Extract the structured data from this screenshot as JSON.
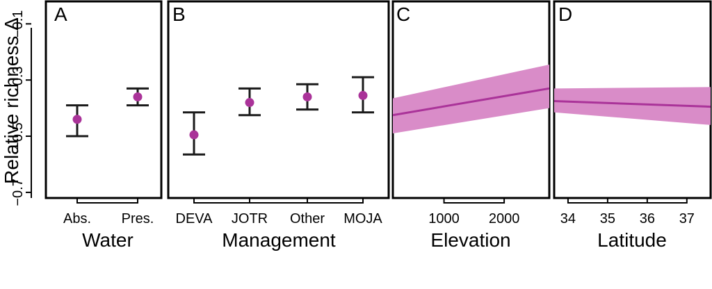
{
  "colors": {
    "point": "#aa3399",
    "band": "#d98cc8",
    "line": "#aa3399"
  },
  "y_axis": {
    "label": "Relative richness Δ",
    "ylim": [
      -0.72,
      -0.02
    ],
    "ticks": [
      -0.1,
      -0.3,
      -0.5,
      -0.7
    ],
    "tick_labels": [
      "−0.1",
      "−0.3",
      "−0.5",
      "−0.7"
    ]
  },
  "chart_data": [
    {
      "panel": "A",
      "type": "scatter",
      "xlabel": "Water",
      "categories": [
        "Abs.",
        "Pres."
      ],
      "values": [
        -0.44,
        -0.36
      ],
      "ci_low": [
        -0.5,
        -0.39
      ],
      "ci_high": [
        -0.39,
        -0.33
      ]
    },
    {
      "panel": "B",
      "type": "scatter",
      "xlabel": "Management",
      "categories": [
        "DEVA",
        "JOTR",
        "Other",
        "MOJA"
      ],
      "values": [
        -0.495,
        -0.38,
        -0.36,
        -0.355
      ],
      "ci_low": [
        -0.565,
        -0.425,
        -0.405,
        -0.415
      ],
      "ci_high": [
        -0.415,
        -0.33,
        -0.315,
        -0.29
      ]
    },
    {
      "panel": "C",
      "type": "line",
      "xlabel": "Elevation",
      "xlim": [
        150,
        2750
      ],
      "xticks": [
        1000,
        2000
      ],
      "xtick_labels": [
        "1000",
        "2000"
      ],
      "x": [
        150,
        2750
      ],
      "y": [
        -0.425,
        -0.33
      ],
      "ci_low": [
        -0.49,
        -0.4
      ],
      "ci_high": [
        -0.365,
        -0.245
      ]
    },
    {
      "panel": "D",
      "type": "line",
      "xlabel": "Latitude",
      "xlim": [
        33.65,
        37.6
      ],
      "xticks": [
        34,
        35,
        36,
        37
      ],
      "xtick_labels": [
        "34",
        "35",
        "36",
        "37"
      ],
      "x": [
        33.65,
        37.6
      ],
      "y": [
        -0.375,
        -0.395
      ],
      "ci_low": [
        -0.415,
        -0.46
      ],
      "ci_high": [
        -0.33,
        -0.325
      ]
    }
  ]
}
